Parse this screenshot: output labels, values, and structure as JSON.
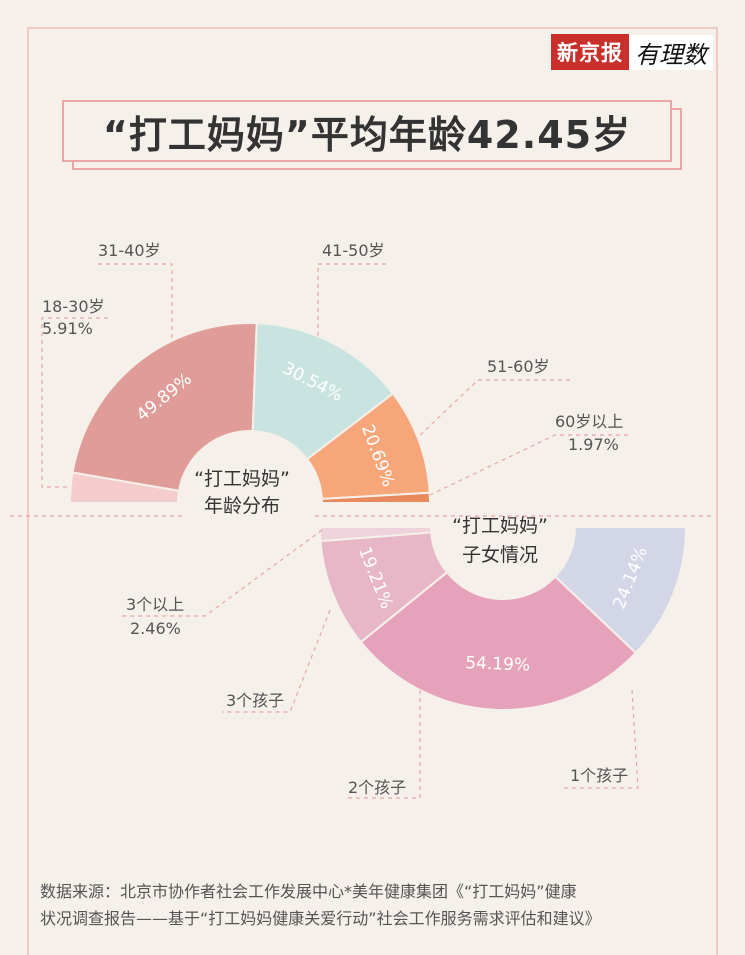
{
  "logo": {
    "brand": "新京报",
    "sub": "有理数"
  },
  "title": "“打工妈妈”平均年龄42.45岁",
  "chart_data": [
    {
      "type": "pie",
      "title": "“打工妈妈”年龄分布",
      "title_lines": [
        "“打工妈妈”",
        "年龄分布"
      ],
      "categories": [
        "18-30岁",
        "31-40岁",
        "41-50岁",
        "51-60岁",
        "60岁以上"
      ],
      "values": [
        5.91,
        49.89,
        30.54,
        20.69,
        1.97
      ],
      "value_labels": [
        "5.91%",
        "49.89%",
        "30.54%",
        "20.69%",
        "1.97%"
      ],
      "colors": [
        "#f4cccc",
        "#e09c98",
        "#c9e3e0",
        "#f7a679",
        "#e98a5e"
      ]
    },
    {
      "type": "pie",
      "title": "“打工妈妈”子女情况",
      "title_lines": [
        "“打工妈妈”",
        "子女情况"
      ],
      "categories": [
        "3个以上",
        "3个孩子",
        "2个孩子",
        "1个孩子"
      ],
      "values": [
        2.46,
        19.21,
        54.19,
        24.14
      ],
      "value_labels": [
        "2.46%",
        "19.21%",
        "54.19%",
        "24.14%"
      ],
      "colors": [
        "#efd3dc",
        "#e7b7c8",
        "#e7a2bb",
        "#d3d6e6"
      ]
    }
  ],
  "source": {
    "line1": "数据来源：北京市协作者社会工作发展中心*美年健康集团《“打工妈妈”健康",
    "line2": "状况调查报告——基于“打工妈妈健康关爱行动”社会工作服务需求评估和建议》"
  }
}
